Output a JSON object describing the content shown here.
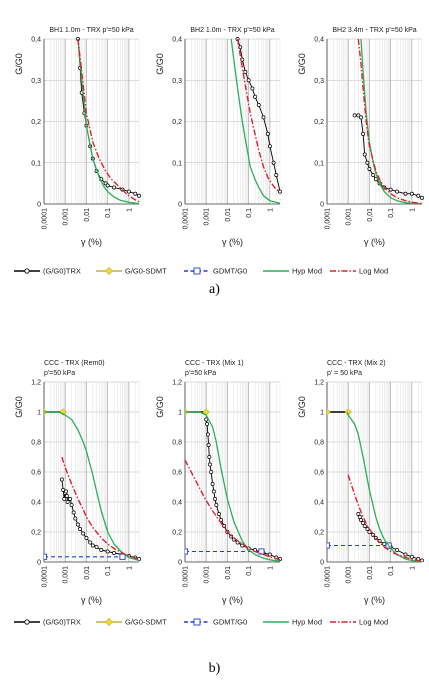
{
  "figure": {
    "caption_a": "a)",
    "caption_b": "b)"
  },
  "styles": {
    "trx": "#000000",
    "sdmt": "#c9b13a",
    "sdmt_fill": "#f2dc28",
    "gdmt": "#1f3fd6",
    "hyp": "#2ab055",
    "log": "#e0202a"
  },
  "legend": {
    "a": [
      "(G/G0)TRX",
      "G/G0-SDMT",
      "GDMT/G0",
      "Hyp Mod",
      "Log Mod"
    ],
    "b": [
      "(G/G0)TRX",
      "G/G0-SDMT",
      "GDMT/G0",
      "Hyp Mod",
      "Log Mod"
    ]
  },
  "chart_data": [
    {
      "type": "line",
      "x_scale": "log",
      "title": "BH1 1.0m - TRX p'=50 kPa",
      "xlabel": "γ (%)",
      "ylabel": "G/G0",
      "xlim": [
        0.0001,
        3
      ],
      "ylim": [
        0,
        0.4
      ],
      "xticks": [
        "0,0001",
        "0,001",
        "0,01",
        "0,1",
        "1"
      ],
      "yticks": [
        "0",
        "0,1",
        "0,2",
        "0,3",
        "0,4"
      ],
      "grid": true,
      "series": [
        {
          "name": "(G/G0)TRX",
          "style": "trx",
          "x": [
            0.004,
            0.005,
            0.006,
            0.008,
            0.01,
            0.015,
            0.02,
            0.03,
            0.05,
            0.08,
            0.1,
            0.2,
            0.5,
            1,
            2,
            3
          ],
          "y": [
            0.4,
            0.33,
            0.27,
            0.22,
            0.19,
            0.14,
            0.11,
            0.08,
            0.06,
            0.05,
            0.045,
            0.04,
            0.035,
            0.03,
            0.025,
            0.02
          ]
        },
        {
          "name": "Hyp Mod",
          "style": "hyp",
          "x": [
            0.004,
            0.006,
            0.01,
            0.02,
            0.04,
            0.07,
            0.1,
            0.2,
            0.4,
            1,
            3
          ],
          "y": [
            0.4,
            0.3,
            0.19,
            0.11,
            0.065,
            0.04,
            0.03,
            0.017,
            0.009,
            0.004,
            0.001
          ]
        },
        {
          "name": "Log Mod",
          "style": "log",
          "x": [
            0.004,
            0.006,
            0.01,
            0.02,
            0.04,
            0.08,
            0.15,
            0.3,
            0.6,
            1,
            2,
            3
          ],
          "y": [
            0.4,
            0.32,
            0.22,
            0.15,
            0.11,
            0.08,
            0.06,
            0.045,
            0.03,
            0.02,
            0.01,
            0.005
          ]
        }
      ]
    },
    {
      "type": "line",
      "x_scale": "log",
      "title": "BH2 1.0m - TRX p'=50 kPa",
      "xlabel": "γ (%)",
      "ylabel": "G/G0",
      "xlim": [
        0.0001,
        3
      ],
      "ylim": [
        0,
        0.4
      ],
      "xticks": [
        "0,0001",
        "0,001",
        "0,01",
        "0,1",
        "1"
      ],
      "yticks": [
        "0",
        "0,1",
        "0,2",
        "0,3",
        "0,4"
      ],
      "grid": true,
      "series": [
        {
          "name": "(G/G0)TRX",
          "style": "trx",
          "x": [
            0.03,
            0.04,
            0.05,
            0.07,
            0.1,
            0.15,
            0.2,
            0.3,
            0.5,
            0.8,
            1,
            1.5,
            2,
            3
          ],
          "y": [
            0.4,
            0.38,
            0.35,
            0.32,
            0.3,
            0.28,
            0.26,
            0.24,
            0.21,
            0.17,
            0.14,
            0.1,
            0.07,
            0.03
          ]
        },
        {
          "name": "Hyp Mod",
          "style": "hyp",
          "x": [
            0.015,
            0.02,
            0.03,
            0.05,
            0.08,
            0.12,
            0.2,
            0.3,
            0.5,
            1,
            3
          ],
          "y": [
            0.4,
            0.35,
            0.28,
            0.2,
            0.14,
            0.09,
            0.06,
            0.04,
            0.02,
            0.008,
            0.002
          ]
        },
        {
          "name": "Log Mod",
          "style": "log",
          "x": [
            0.03,
            0.05,
            0.08,
            0.12,
            0.2,
            0.3,
            0.5,
            0.8,
            1.2,
            2,
            3
          ],
          "y": [
            0.4,
            0.33,
            0.27,
            0.22,
            0.17,
            0.13,
            0.09,
            0.065,
            0.05,
            0.035,
            0.03
          ]
        }
      ]
    },
    {
      "type": "line",
      "x_scale": "log",
      "title": "BH2 3.4m - TRX p'=50 kPa",
      "xlabel": "γ (%)",
      "ylabel": "G/G0",
      "xlim": [
        0.0001,
        3
      ],
      "ylim": [
        0,
        0.4
      ],
      "xticks": [
        "0,0001",
        "0,001",
        "0,01",
        "0,1",
        "1"
      ],
      "yticks": [
        "0",
        "0,1",
        "0,2",
        "0,3",
        "0,4"
      ],
      "grid": true,
      "series": [
        {
          "name": "(G/G0)TRX",
          "style": "trx",
          "x": [
            0.002,
            0.003,
            0.004,
            0.005,
            0.006,
            0.008,
            0.01,
            0.015,
            0.02,
            0.03,
            0.05,
            0.1,
            0.2,
            0.5,
            1,
            2,
            3
          ],
          "y": [
            0.215,
            0.215,
            0.21,
            0.17,
            0.12,
            0.1,
            0.085,
            0.07,
            0.06,
            0.05,
            0.04,
            0.035,
            0.03,
            0.025,
            0.025,
            0.02,
            0.015
          ]
        },
        {
          "name": "Hyp Mod",
          "style": "hyp",
          "x": [
            0.004,
            0.005,
            0.007,
            0.01,
            0.015,
            0.02,
            0.03,
            0.05,
            0.1,
            0.2,
            0.5,
            1,
            3
          ],
          "y": [
            0.4,
            0.32,
            0.22,
            0.15,
            0.1,
            0.075,
            0.05,
            0.03,
            0.015,
            0.008,
            0.003,
            0.002,
            0.001
          ]
        },
        {
          "name": "Log Mod",
          "style": "log",
          "x": [
            0.003,
            0.004,
            0.005,
            0.007,
            0.01,
            0.02,
            0.03,
            0.05,
            0.1,
            0.2,
            0.5,
            1,
            3
          ],
          "y": [
            0.4,
            0.34,
            0.28,
            0.2,
            0.14,
            0.08,
            0.06,
            0.04,
            0.025,
            0.015,
            0.008,
            0.004,
            0.001
          ]
        }
      ]
    },
    {
      "type": "line",
      "x_scale": "log",
      "title": "CCC - TRX (Rem0)",
      "subtitle": "p'=50 kPa",
      "xlabel": "γ (%)",
      "ylabel": "G/G0",
      "xlim": [
        0.0001,
        3
      ],
      "ylim": [
        0,
        1.2
      ],
      "xticks": [
        "0,0001",
        "0,001",
        "0,01",
        "0,1",
        "1"
      ],
      "yticks": [
        "0",
        "0,2",
        "0,4",
        "0,6",
        "0,8",
        "1",
        "1,2"
      ],
      "grid": true,
      "series": [
        {
          "name": "(G/G0)TRX",
          "style": "trx",
          "x": [
            0.0007,
            0.0008,
            0.0009,
            0.001,
            0.0011,
            0.0012,
            0.0013,
            0.0015,
            0.0017,
            0.002,
            0.0025,
            0.003,
            0.004,
            0.005,
            0.007,
            0.01,
            0.015,
            0.02,
            0.03,
            0.05,
            0.1,
            0.2,
            0.5,
            1,
            2,
            3
          ],
          "y": [
            0.55,
            0.48,
            0.42,
            0.46,
            0.47,
            0.44,
            0.4,
            0.42,
            0.42,
            0.38,
            0.33,
            0.29,
            0.25,
            0.22,
            0.19,
            0.16,
            0.13,
            0.11,
            0.1,
            0.08,
            0.07,
            0.06,
            0.05,
            0.04,
            0.03,
            0.02
          ]
        },
        {
          "name": "G/G0-SDMT",
          "style": "sdmt",
          "marker": "diamond",
          "x": [
            0.0001,
            0.0008
          ],
          "y": [
            1.0,
            1.0
          ]
        },
        {
          "name": "GDMT/G0",
          "style": "gdmt",
          "marker": "square",
          "x": [
            0.0001,
            0.5
          ],
          "y": [
            0.035,
            0.035
          ]
        },
        {
          "name": "Hyp Mod",
          "style": "hyp",
          "x": [
            0.0001,
            0.0005,
            0.001,
            0.002,
            0.004,
            0.007,
            0.01,
            0.02,
            0.03,
            0.05,
            0.1,
            0.2,
            0.5,
            1,
            3
          ],
          "y": [
            1.0,
            1.0,
            0.98,
            0.95,
            0.88,
            0.8,
            0.74,
            0.58,
            0.47,
            0.34,
            0.2,
            0.12,
            0.06,
            0.03,
            0.01
          ]
        },
        {
          "name": "Log Mod",
          "style": "log",
          "x": [
            0.0007,
            0.001,
            0.002,
            0.004,
            0.007,
            0.01,
            0.02,
            0.05,
            0.1,
            0.2,
            0.5,
            1,
            3
          ],
          "y": [
            0.7,
            0.63,
            0.52,
            0.42,
            0.35,
            0.3,
            0.23,
            0.16,
            0.12,
            0.09,
            0.06,
            0.04,
            0.02
          ]
        }
      ]
    },
    {
      "type": "line",
      "x_scale": "log",
      "title": "CCC - TRX (Mix 1)",
      "subtitle": "p'=50 kPa",
      "xlabel": "γ (%)",
      "ylabel": "G/G0",
      "xlim": [
        0.0001,
        3
      ],
      "ylim": [
        0,
        1.2
      ],
      "xticks": [
        "0,0001",
        "0,001",
        "0,01",
        "0,1",
        "1"
      ],
      "yticks": [
        "0",
        "0,2",
        "0,4",
        "0,6",
        "0,8",
        "1",
        "1,2"
      ],
      "grid": true,
      "series": [
        {
          "name": "(G/G0)TRX",
          "style": "trx",
          "x": [
            0.001,
            0.0011,
            0.0012,
            0.0013,
            0.0014,
            0.0015,
            0.0017,
            0.002,
            0.0023,
            0.0026,
            0.003,
            0.004,
            0.005,
            0.007,
            0.01,
            0.015,
            0.02,
            0.03,
            0.05,
            0.1,
            0.2,
            0.5,
            1,
            2,
            3
          ],
          "y": [
            0.95,
            0.92,
            0.85,
            0.78,
            0.7,
            0.65,
            0.6,
            0.52,
            0.47,
            0.42,
            0.38,
            0.32,
            0.28,
            0.24,
            0.2,
            0.17,
            0.15,
            0.13,
            0.11,
            0.09,
            0.08,
            0.06,
            0.05,
            0.03,
            0.02
          ]
        },
        {
          "name": "G/G0-SDMT",
          "style": "sdmt",
          "marker": "diamond",
          "x": [
            0.0001,
            0.001
          ],
          "y": [
            1.0,
            1.0
          ]
        },
        {
          "name": "GDMT/G0",
          "style": "gdmt",
          "marker": "square",
          "x": [
            0.0001,
            0.4
          ],
          "y": [
            0.07,
            0.07
          ]
        },
        {
          "name": "Hyp Mod",
          "style": "hyp",
          "x": [
            0.0001,
            0.0005,
            0.001,
            0.002,
            0.003,
            0.005,
            0.01,
            0.02,
            0.05,
            0.1,
            0.2,
            0.5,
            1,
            3
          ],
          "y": [
            1.0,
            1.0,
            0.98,
            0.9,
            0.8,
            0.62,
            0.42,
            0.27,
            0.14,
            0.08,
            0.05,
            0.025,
            0.015,
            0.005
          ]
        },
        {
          "name": "Log Mod",
          "style": "log",
          "x": [
            0.0001,
            0.0003,
            0.0007,
            0.001,
            0.002,
            0.005,
            0.01,
            0.02,
            0.05,
            0.1,
            0.2,
            0.5,
            1,
            3
          ],
          "y": [
            0.68,
            0.55,
            0.45,
            0.41,
            0.34,
            0.26,
            0.2,
            0.16,
            0.12,
            0.09,
            0.07,
            0.05,
            0.035,
            0.015
          ]
        }
      ]
    },
    {
      "type": "line",
      "x_scale": "log",
      "title": "CCC - TRX (Mix 2)",
      "subtitle": "p' = 50 kPa",
      "xlabel": "γ (%)",
      "ylabel": "G/G0",
      "xlim": [
        0.0001,
        3
      ],
      "ylim": [
        0,
        1.2
      ],
      "xticks": [
        "0,0001",
        "0,001",
        "0,01",
        "0,1",
        "1"
      ],
      "yticks": [
        "0",
        "0,2",
        "0,4",
        "0,6",
        "0,8",
        "1",
        "1,2"
      ],
      "grid": true,
      "series": [
        {
          "name": "(G/G0)TRX",
          "style": "trx",
          "x": [
            0.003,
            0.0035,
            0.004,
            0.005,
            0.006,
            0.008,
            0.01,
            0.015,
            0.02,
            0.03,
            0.05,
            0.1,
            0.2,
            0.5,
            1,
            2,
            3
          ],
          "y": [
            0.32,
            0.3,
            0.28,
            0.26,
            0.24,
            0.22,
            0.2,
            0.18,
            0.16,
            0.14,
            0.12,
            0.1,
            0.08,
            0.05,
            0.035,
            0.02,
            0.01
          ]
        },
        {
          "name": "G/G0-SDMT",
          "style": "sdmt",
          "marker": "diamond",
          "x": [
            0.0001,
            0.001
          ],
          "y": [
            1.0,
            1.0
          ]
        },
        {
          "name": "GDMT/G0",
          "style": "gdmt",
          "marker": "square",
          "x": [
            0.0001,
            0.08
          ],
          "y": [
            0.11,
            0.11
          ]
        },
        {
          "name": "Hyp Mod",
          "style": "hyp",
          "x": [
            0.0009,
            0.001,
            0.002,
            0.003,
            0.005,
            0.008,
            0.01,
            0.02,
            0.03,
            0.05,
            0.1,
            0.2,
            0.5,
            1,
            2,
            3
          ],
          "y": [
            1.0,
            0.98,
            0.92,
            0.85,
            0.7,
            0.55,
            0.48,
            0.3,
            0.22,
            0.15,
            0.09,
            0.05,
            0.02,
            0.01,
            0.005,
            0.002
          ]
        },
        {
          "name": "Log Mod",
          "style": "log",
          "x": [
            0.001,
            0.002,
            0.003,
            0.005,
            0.008,
            0.01,
            0.02,
            0.03,
            0.05,
            0.1,
            0.2,
            0.5,
            1,
            2,
            3
          ],
          "y": [
            0.58,
            0.45,
            0.38,
            0.3,
            0.24,
            0.22,
            0.16,
            0.13,
            0.1,
            0.07,
            0.05,
            0.03,
            0.02,
            0.01,
            0.005
          ]
        }
      ]
    }
  ]
}
